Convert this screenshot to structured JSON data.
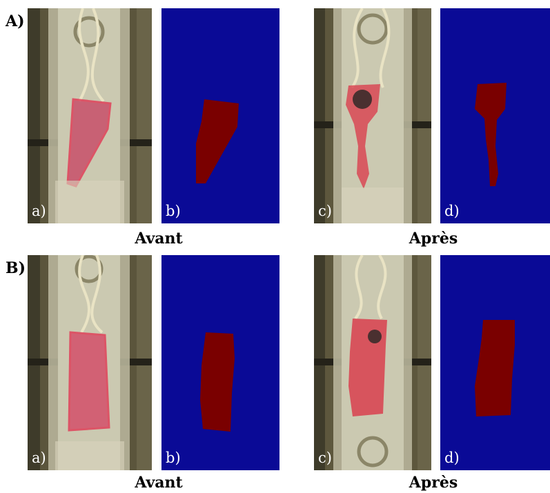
{
  "rows": [
    {
      "label": "A)",
      "panels": [
        {
          "label": "a)",
          "kind": "photo",
          "state": "before"
        },
        {
          "label": "b)",
          "kind": "mask",
          "state": "before"
        },
        {
          "label": "c)",
          "kind": "photo",
          "state": "after"
        },
        {
          "label": "d)",
          "kind": "mask",
          "state": "after"
        }
      ],
      "captions": {
        "before": "Avant",
        "after": "Après"
      }
    },
    {
      "label": "B)",
      "panels": [
        {
          "label": "a)",
          "kind": "photo",
          "state": "before"
        },
        {
          "label": "b)",
          "kind": "mask",
          "state": "before"
        },
        {
          "label": "c)",
          "kind": "photo",
          "state": "after"
        },
        {
          "label": "d)",
          "kind": "mask",
          "state": "after"
        }
      ],
      "captions": {
        "before": "Avant",
        "after": "Après"
      }
    }
  ],
  "colors": {
    "mask_background": "#0a0a96",
    "mask_object": "#7a0000",
    "photo_object": "#d9404f"
  }
}
